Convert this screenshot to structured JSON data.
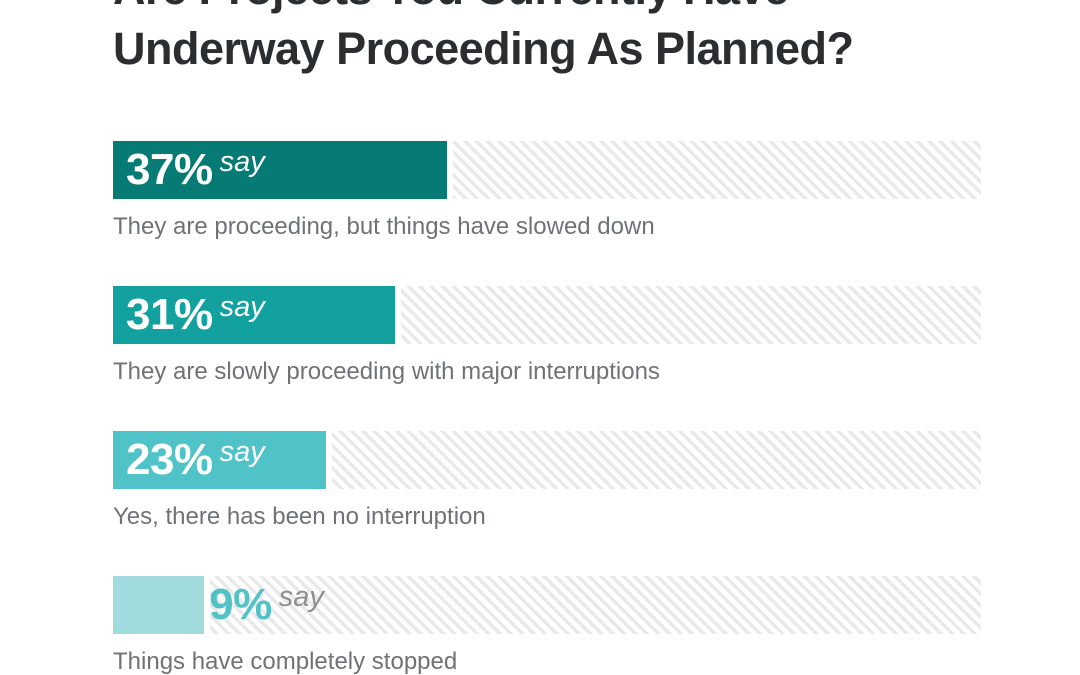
{
  "title": {
    "line1": "Are Projects You Currently Have",
    "line2": "Underway Proceeding As Planned?"
  },
  "colors": {
    "background": "#ffffff",
    "title_text": "#2b2e31",
    "caption_text": "#6d7377",
    "stripe": "#e9e9eb",
    "bar_label_inside": "#ffffff"
  },
  "chart_data": {
    "type": "bar",
    "orientation": "horizontal",
    "title": "Are Projects You Currently Have Underway Proceeding As Planned?",
    "xlabel": "",
    "ylabel": "",
    "xlim": [
      0,
      100
    ],
    "unit": "percent",
    "grid": false,
    "legend": false,
    "track_style": "diagonal-stripes",
    "categories": [
      "They are proceeding, but things have slowed down",
      "They are slowly proceeding with major interruptions",
      "Yes, there has been no interruption",
      "Things have completely stopped"
    ],
    "values": [
      37,
      31,
      23,
      9
    ],
    "bars": [
      {
        "value": 37,
        "value_label": "37%",
        "suffix": "say",
        "caption": "They are proceeding, but things have slowed down",
        "color": "#067a75",
        "label_inside": true,
        "percent_color": "#ffffff",
        "suffix_color": "#ffffff"
      },
      {
        "value": 31,
        "value_label": "31%",
        "suffix": "say",
        "caption": "They are slowly proceeding with major interruptions",
        "color": "#13a1a0",
        "label_inside": true,
        "percent_color": "#ffffff",
        "suffix_color": "#ffffff"
      },
      {
        "value": 23,
        "value_label": "23%",
        "suffix": "say",
        "caption": "Yes, there has been no interruption",
        "color": "#4fc3c7",
        "label_inside": true,
        "percent_color": "#ffffff",
        "suffix_color": "#ffffff"
      },
      {
        "value": 9,
        "value_label": "9%",
        "suffix": "say",
        "caption": "Things have completely stopped",
        "color": "#a1dbde",
        "label_inside": false,
        "percent_color": "#53c2c6",
        "suffix_color": "#8e8e8e"
      }
    ]
  }
}
